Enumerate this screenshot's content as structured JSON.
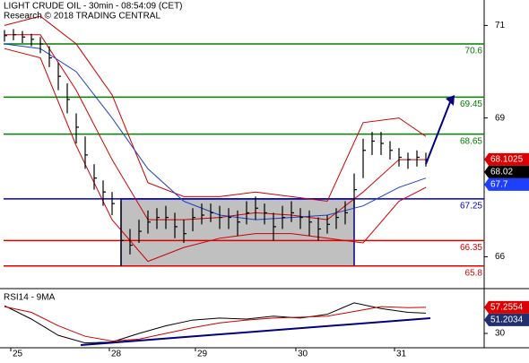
{
  "chart_data": {
    "type": "ohlc",
    "title": "LIGHT CRUDE OIL - 30min - 08:54:09 (CET)",
    "subtitle": "Research © 2018 TRADING CENTRAL",
    "xlim": [
      -0.5,
      53.5
    ],
    "xticks": [
      {
        "value": 0.7,
        "label": "25"
      },
      {
        "value": 11.7,
        "label": "28"
      },
      {
        "value": 21.3,
        "label": "29"
      },
      {
        "value": 32.5,
        "label": "30"
      },
      {
        "value": 43.5,
        "label": "31"
      }
    ],
    "ylim": [
      65.35,
      71.55
    ],
    "yticks": [
      66,
      69,
      71
    ],
    "close": [
      70.78,
      70.8,
      70.75,
      70.7,
      70.6,
      70.3,
      69.9,
      69.4,
      68.8,
      68.2,
      67.7,
      67.4,
      67.15,
      66.35,
      66.25,
      66.55,
      66.75,
      66.85,
      66.85,
      66.65,
      66.5,
      66.85,
      66.9,
      66.95,
      66.85,
      66.85,
      66.75,
      66.95,
      67.05,
      66.95,
      66.65,
      66.85,
      66.95,
      66.85,
      66.75,
      66.6,
      66.7,
      66.85,
      66.95,
      67.45,
      68.3,
      68.5,
      68.45,
      68.3,
      68.15,
      68.1,
      68.15,
      68.1
    ],
    "high": [
      70.9,
      70.92,
      70.88,
      70.82,
      70.75,
      70.55,
      70.2,
      69.75,
      69.1,
      68.6,
      68.0,
      67.65,
      67.4,
      67.2,
      66.6,
      66.8,
      67.0,
      67.05,
      67.1,
      66.95,
      66.8,
      67.05,
      67.15,
      67.15,
      67.1,
      67.05,
      67.0,
      67.2,
      67.3,
      67.15,
      66.95,
      67.1,
      67.2,
      67.05,
      67.0,
      66.85,
      66.9,
      67.05,
      67.2,
      67.8,
      68.55,
      68.7,
      68.7,
      68.5,
      68.35,
      68.25,
      68.3,
      68.25
    ],
    "low": [
      70.65,
      70.68,
      70.62,
      70.55,
      70.4,
      70.1,
      69.6,
      69.1,
      68.45,
      67.9,
      67.45,
      67.1,
      66.9,
      65.8,
      66.05,
      66.3,
      66.5,
      66.6,
      66.6,
      66.4,
      66.3,
      66.55,
      66.7,
      66.75,
      66.6,
      66.6,
      66.45,
      66.7,
      66.8,
      66.7,
      66.35,
      66.6,
      66.75,
      66.6,
      66.45,
      66.35,
      66.5,
      66.6,
      66.7,
      67.05,
      67.7,
      68.2,
      68.2,
      68.1,
      67.95,
      67.9,
      67.95,
      67.95
    ],
    "bands": [
      {
        "color": "#cc0000",
        "x": [
          0,
          4,
          8,
          12,
          16,
          20,
          24,
          28,
          32,
          36,
          40,
          44,
          47
        ],
        "values": [
          71.0,
          71.2,
          70.6,
          69.5,
          67.6,
          67.3,
          67.3,
          67.4,
          67.3,
          67.2,
          68.9,
          69.0,
          68.6
        ]
      },
      {
        "color": "#cc0000",
        "x": [
          0,
          4,
          8,
          12,
          16,
          20,
          24,
          28,
          32,
          36,
          40,
          44,
          47
        ],
        "values": [
          70.5,
          70.3,
          68.4,
          66.8,
          65.9,
          66.2,
          66.4,
          66.5,
          66.5,
          66.4,
          66.3,
          67.2,
          67.5
        ]
      },
      {
        "color": "#cc0000",
        "x": [
          0,
          4,
          8,
          12,
          16,
          20,
          24,
          28,
          32,
          36,
          40,
          44,
          47
        ],
        "values": [
          70.8,
          70.8,
          69.6,
          68.1,
          66.8,
          66.8,
          66.85,
          66.95,
          66.9,
          66.8,
          67.4,
          68.1,
          68.1
        ]
      },
      {
        "color": "#1f3fbf",
        "x": [
          0,
          4,
          8,
          12,
          16,
          20,
          24,
          28,
          32,
          36,
          40,
          44,
          47
        ],
        "values": [
          70.6,
          70.5,
          70.0,
          69.0,
          67.9,
          67.2,
          66.9,
          66.8,
          66.85,
          66.9,
          67.1,
          67.5,
          67.7
        ]
      }
    ],
    "range_box": {
      "x": [
        13,
        39
      ],
      "y": [
        65.8,
        67.25
      ]
    },
    "levels": [
      {
        "value": 70.6,
        "color": "#008000"
      },
      {
        "value": 69.45,
        "color": "#008000"
      },
      {
        "value": 68.65,
        "color": "#008000"
      },
      {
        "value": 67.25,
        "color": "#0000cc"
      },
      {
        "value": 66.35,
        "color": "#dd0000"
      },
      {
        "value": 65.8,
        "color": "#dd0000"
      }
    ],
    "price_boxes": [
      {
        "value": 68.1025,
        "color": "#dd0000"
      },
      {
        "value": 68.02,
        "color": "#000000"
      },
      {
        "value": 67.7,
        "color": "#1f3fff"
      }
    ],
    "rsi": {
      "title": "RSI14 - 9MA",
      "ylim": [
        15,
        75
      ],
      "yticks": [
        30
      ],
      "x": [
        0,
        3,
        6,
        9,
        12,
        15,
        18,
        21,
        24,
        27,
        30,
        33,
        36,
        39,
        42,
        45,
        47
      ],
      "series": [
        {
          "color": "#000000",
          "values": [
            59,
            45,
            28,
            20,
            21,
            30,
            38,
            44,
            46,
            45,
            48,
            46,
            50,
            62,
            56,
            52,
            51.2
          ]
        },
        {
          "color": "#cc0000",
          "values": [
            58,
            52,
            38,
            27,
            22,
            24,
            30,
            36,
            41,
            44,
            46,
            47,
            48,
            53,
            58,
            57,
            57.26
          ]
        }
      ],
      "boxes": [
        {
          "value": 57.2554,
          "color": "#dd0000"
        },
        {
          "value": 51.2034,
          "color": "#1f2f6f"
        }
      ]
    }
  }
}
